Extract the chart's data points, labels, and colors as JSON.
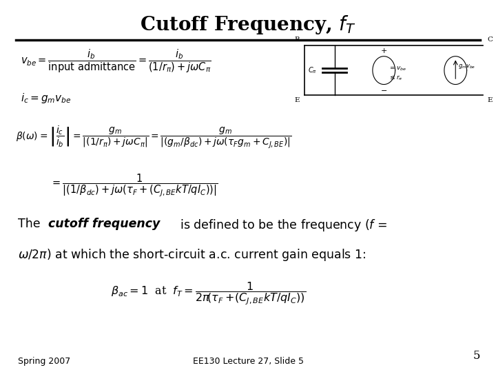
{
  "title": "Cutoff Frequency, $f_T$",
  "title_fontsize": 20,
  "background_color": "#ffffff",
  "text_color": "#000000",
  "footer_left": "Spring 2007",
  "footer_center": "EE130 Lecture 27, Slide 5",
  "slide_number": "5"
}
